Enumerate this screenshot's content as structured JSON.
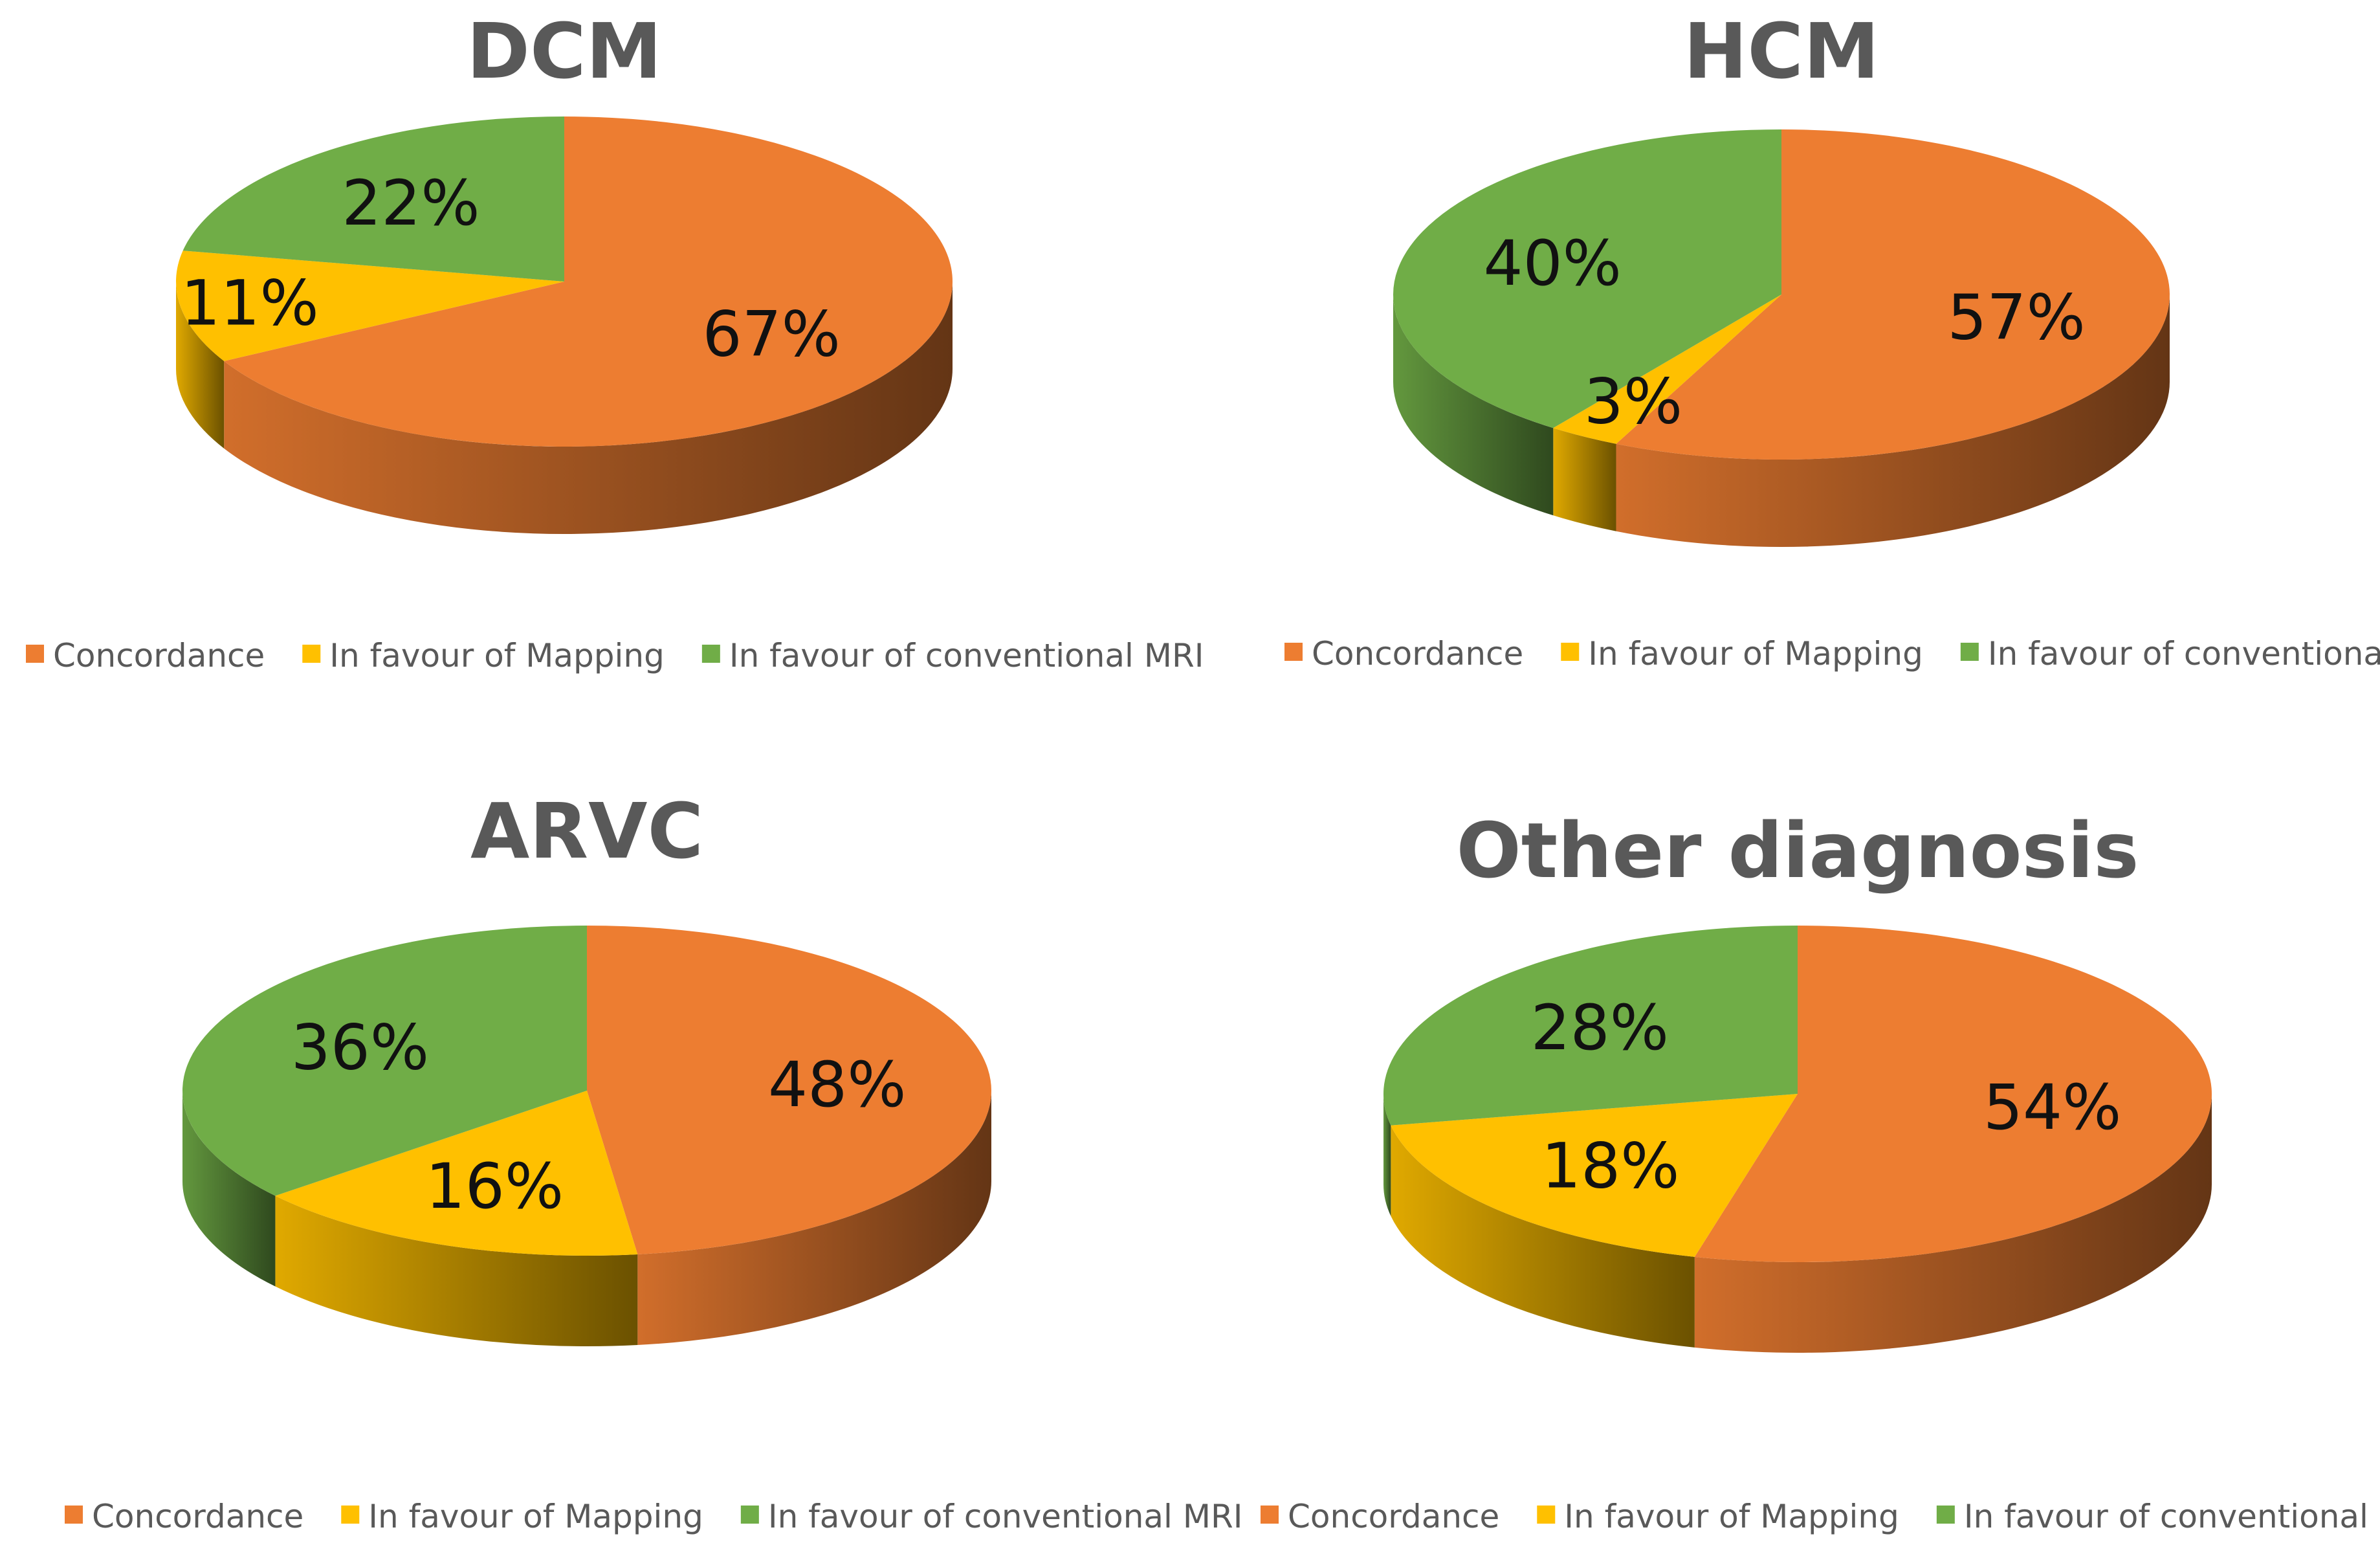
{
  "legend": {
    "labels": [
      "Concordance",
      "In favour of Mapping",
      "In favour of conventional MRI"
    ]
  },
  "colors": {
    "concordance": "#ED7D31",
    "mapping": "#FFC000",
    "conventional": "#70AD47",
    "title": "#595959"
  },
  "chart_data": [
    {
      "type": "pie",
      "title": "DCM",
      "categories": [
        "Concordance",
        "In favour of Mapping",
        "In favour of conventional MRI"
      ],
      "values": [
        67,
        11,
        22
      ],
      "labels": [
        "67%",
        "11%",
        "22%"
      ]
    },
    {
      "type": "pie",
      "title": "HCM",
      "categories": [
        "Concordance",
        "In favour of Mapping",
        "In favour of conventional MRI"
      ],
      "values": [
        57,
        3,
        40
      ],
      "labels": [
        "57%",
        "3%",
        "40%"
      ]
    },
    {
      "type": "pie",
      "title": "ARVC",
      "categories": [
        "Concordance",
        "In favour of Mapping",
        "In favour of conventional MRI"
      ],
      "values": [
        48,
        16,
        36
      ],
      "labels": [
        "48%",
        "16%",
        "36%"
      ]
    },
    {
      "type": "pie",
      "title": "Other diagnosis",
      "categories": [
        "Concordance",
        "In favour of Mapping",
        "In favour of conventional MRI"
      ],
      "values": [
        54,
        18,
        28
      ],
      "labels": [
        "54%",
        "18%",
        "28%"
      ]
    }
  ]
}
